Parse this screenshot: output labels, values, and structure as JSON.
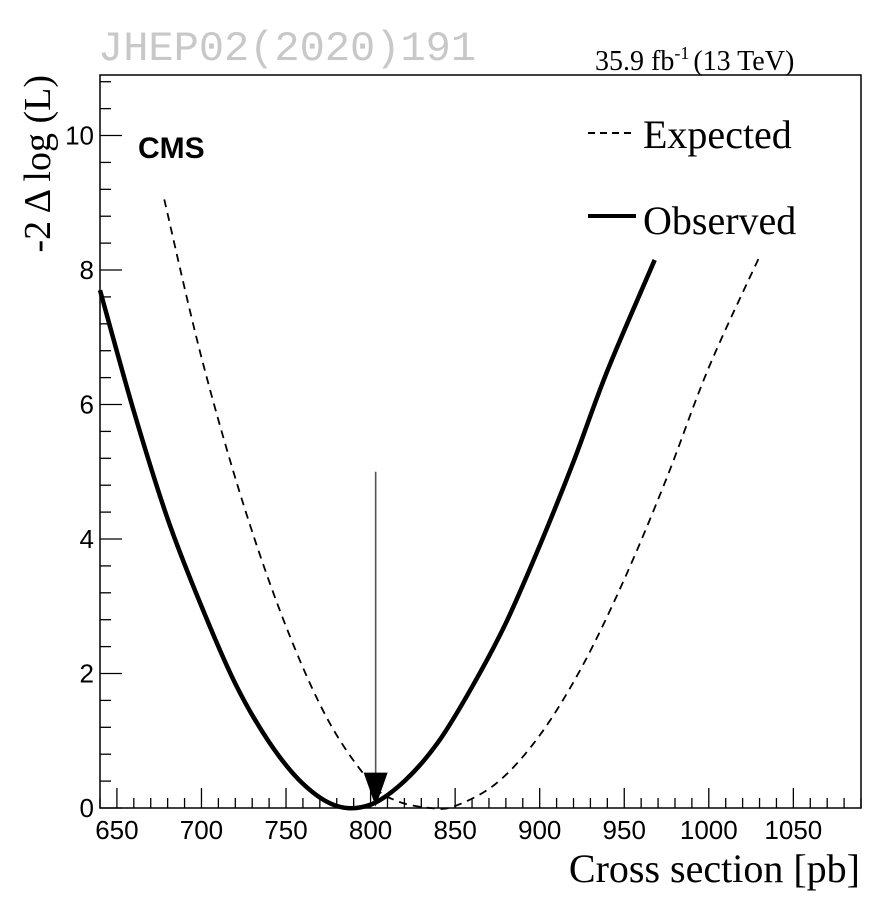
{
  "header": {
    "watermark": "JHEP02(2020)191",
    "lumi_value": "35.9 fb",
    "lumi_exponent": "-1",
    "lumi_energy": "(13 TeV)",
    "experiment": "CMS"
  },
  "legend": {
    "expected": "Expected",
    "observed": "Observed"
  },
  "chart_data": {
    "type": "line",
    "xlabel": "Cross section [pb]",
    "ylabel": "-2 Δ log (L)",
    "xlim": [
      640,
      1090
    ],
    "ylim": [
      0,
      10.9
    ],
    "x_ticks": [
      650,
      700,
      750,
      800,
      850,
      900,
      950,
      1000,
      1050
    ],
    "y_ticks": [
      0,
      2,
      4,
      6,
      8,
      10
    ],
    "grid": false,
    "legend_position": "top-right",
    "series": [
      {
        "name": "Expected",
        "style": "dashed",
        "x": [
          678,
          700,
          725,
          750,
          775,
          800,
          815,
          835,
          850,
          875,
          900,
          925,
          950,
          975,
          1000,
          1030
        ],
        "y": [
          9.05,
          6.7,
          4.5,
          2.7,
          1.3,
          0.38,
          0.11,
          0.0,
          0.03,
          0.38,
          1.08,
          2.1,
          3.4,
          4.9,
          6.55,
          8.2
        ]
      },
      {
        "name": "Observed",
        "style": "solid",
        "x": [
          640,
          660,
          680,
          700,
          720,
          740,
          760,
          780,
          800,
          820,
          840,
          860,
          880,
          900,
          920,
          940,
          968
        ],
        "y": [
          7.7,
          5.9,
          4.3,
          3.0,
          1.85,
          0.98,
          0.36,
          0.03,
          0.05,
          0.4,
          0.98,
          1.8,
          2.75,
          3.9,
          5.15,
          6.5,
          8.15
        ]
      }
    ],
    "annotations": [
      {
        "type": "arrow",
        "x": 803,
        "y_from": 5.0,
        "y_to": 0.05
      }
    ],
    "colors": {
      "lines": "#000000",
      "watermark": "#c8c8c8",
      "arrow": "#555555"
    }
  }
}
